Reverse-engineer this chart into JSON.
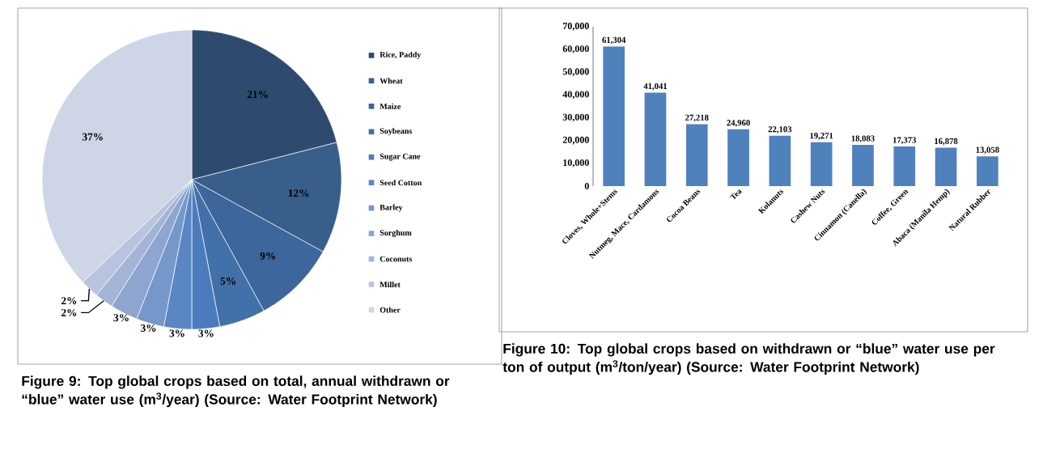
{
  "chart_data": [
    {
      "type": "pie",
      "categories": [
        "Rice, Paddy",
        "Wheat",
        "Maize",
        "Soybeans",
        "Sugar Cane",
        "Seed Cotton",
        "Barley",
        "Sorghum",
        "Coconuts",
        "Millet",
        "Other"
      ],
      "values": [
        21,
        12,
        9,
        5,
        3,
        3,
        3,
        3,
        2,
        2,
        37
      ],
      "value_labels": [
        "21%",
        "12%",
        "9%",
        "5%",
        "3%",
        "3%",
        "3%",
        "3%",
        "2%",
        "2%",
        "37%"
      ],
      "colors": [
        "#2e4b6f",
        "#385e8a",
        "#3d669c",
        "#4270a8",
        "#4a7cbd",
        "#5a87c3",
        "#7697c9",
        "#8ea5cf",
        "#a4b4d6",
        "#b8c4de",
        "#cdd5e6"
      ],
      "legend": "right",
      "annotations": [
        "Figure 9:  Top global crops based on total, annual withdrawn or “blue” water use (m$^{3}$/year) (Source:  Water Footprint Network)"
      ]
    },
    {
      "type": "bar",
      "categories": [
        "Cloves, Whole+Stems",
        "Nutmeg, Mace, Cardamons",
        "Cocoa Beans",
        "Tea",
        "Kolanuts",
        "Cashew Nuts",
        "Cinnamon (Canella)",
        "Coffee, Green",
        "Abaca (Manila Hemp)",
        "Natural Rubber"
      ],
      "values": [
        61304,
        41041,
        27218,
        24960,
        22103,
        19271,
        18083,
        17373,
        16878,
        13058
      ],
      "value_labels": [
        "61,304",
        "41,041",
        "27,218",
        "24,960",
        "22,103",
        "19,271",
        "18,083",
        "17,373",
        "16,878",
        "13,058"
      ],
      "color": "#4f81bd",
      "ylim": [
        0,
        70000
      ],
      "yticks": [
        0,
        {
          "value": 10000,
          "label": "10,000"
        },
        {
          "value": 20000,
          "label": "20,000"
        },
        {
          "value": 30000,
          "label": "30,000"
        },
        {
          "value": 40000,
          "label": "40,000"
        },
        {
          "value": 50000,
          "label": "50,000"
        },
        {
          "value": 60000,
          "label": "60,000"
        },
        {
          "value": 70000,
          "label": "70,000"
        }
      ],
      "annotations": [
        "Figure 10:  Top global crops based on withdrawn or “blue” water use per ton of output (m$^{3}$/ton/year) (Source:  Water Footprint Network)"
      ]
    }
  ]
}
